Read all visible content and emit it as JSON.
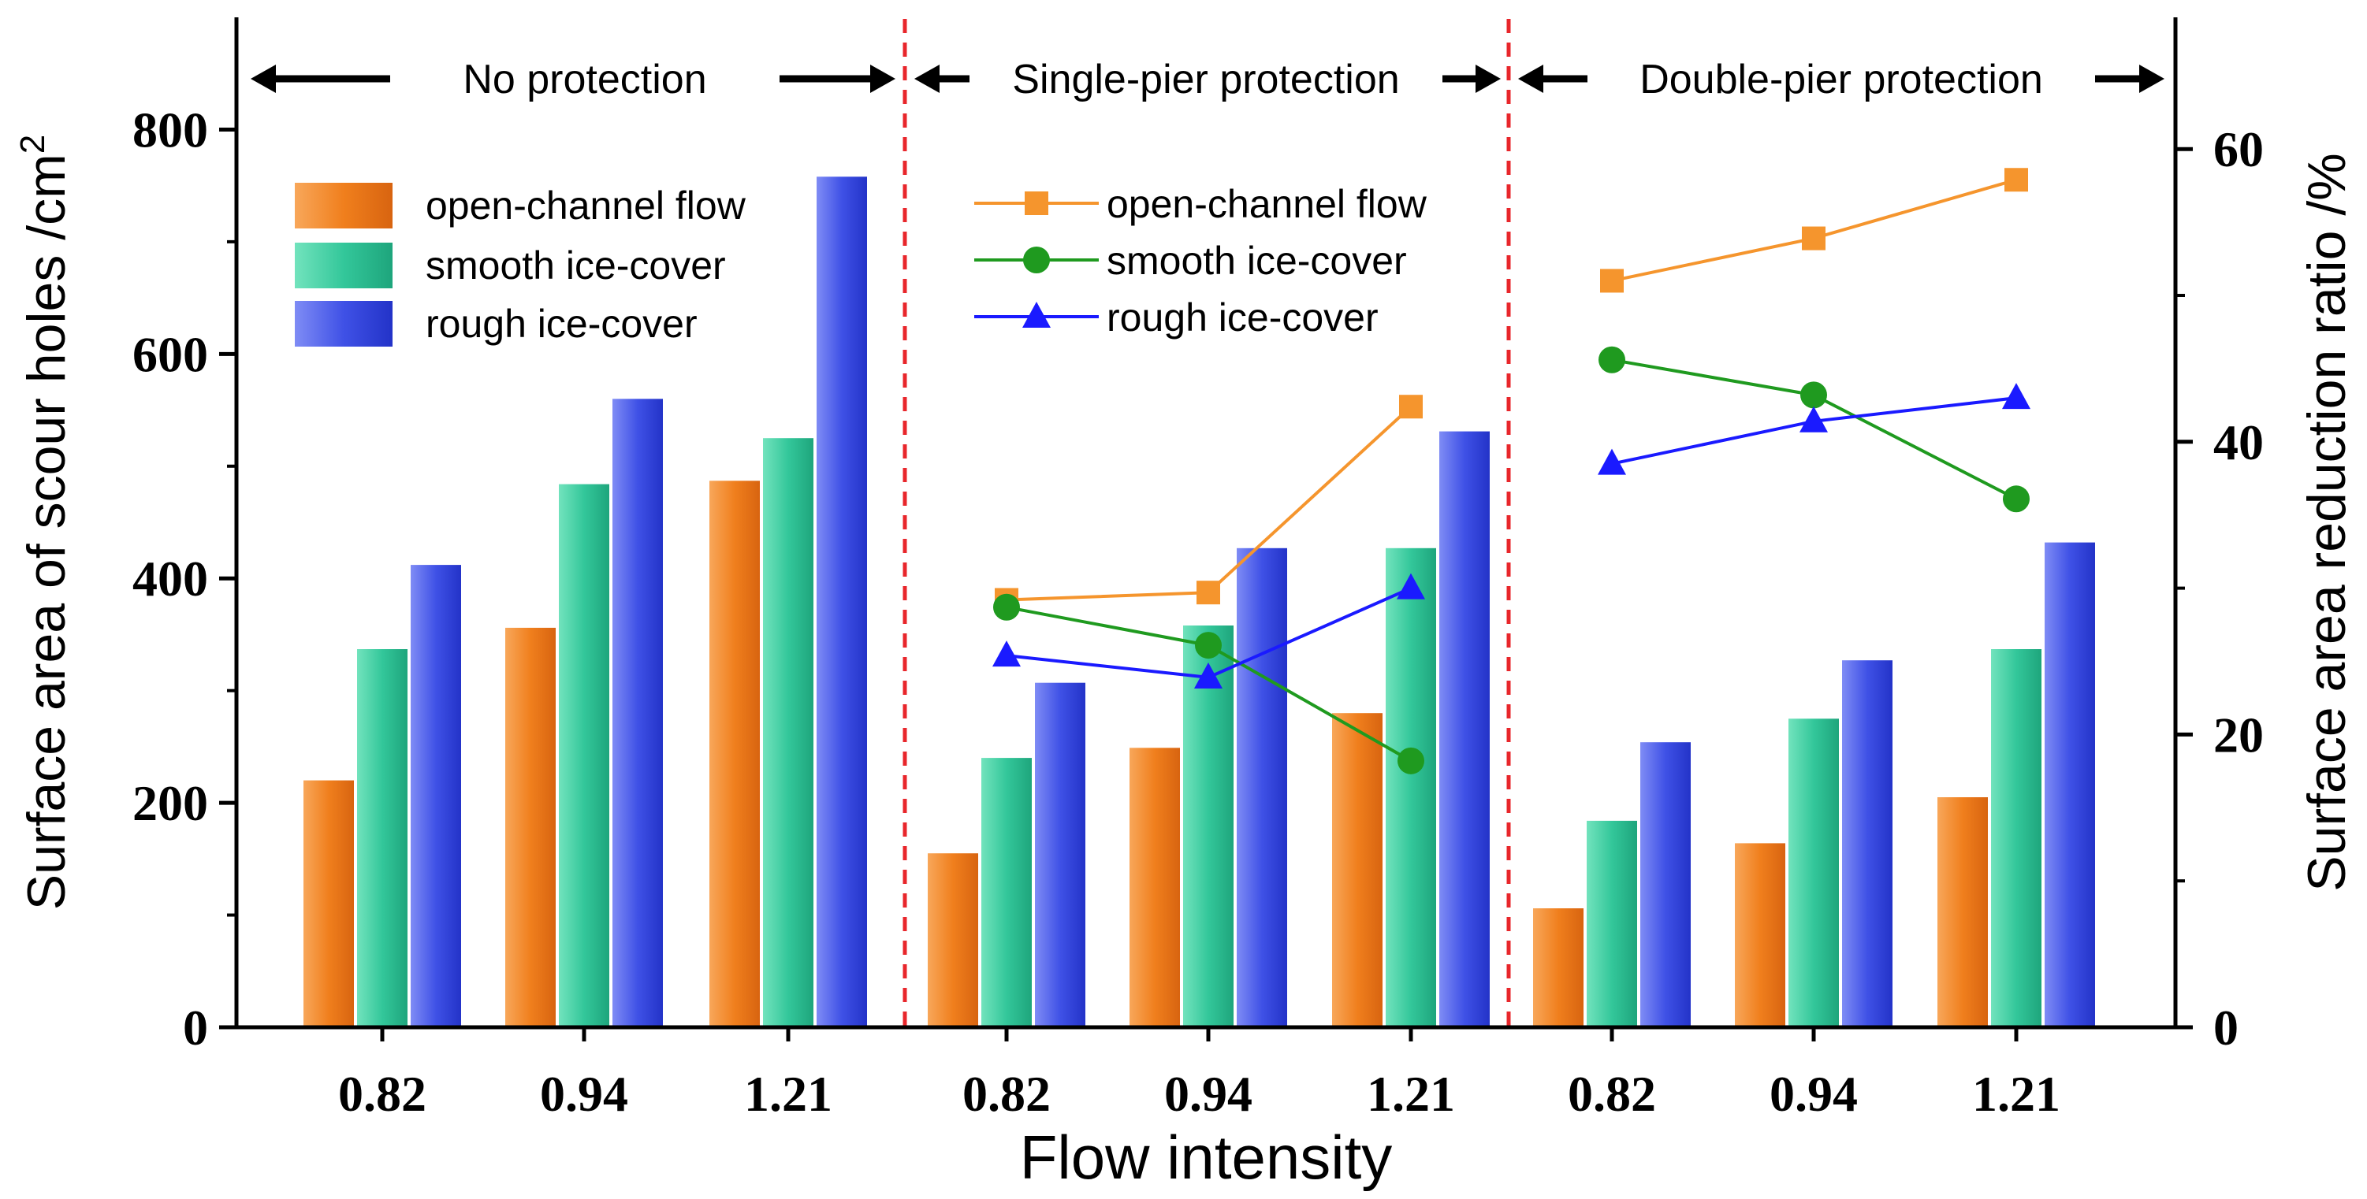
{
  "chart_data": {
    "type": "bar",
    "xlabel": "Flow intensity",
    "ylabel_left": "Surface area of scour holes /cm",
    "ylabel_left_superscript": "2",
    "ylabel_right": "Surface area reduction ratio /%",
    "ylim_left": [
      0,
      900
    ],
    "yticks_left": [
      "0",
      "200",
      "400",
      "600",
      "800"
    ],
    "ylim_right": [
      0,
      69
    ],
    "yticks_right": [
      "0",
      "20",
      "40",
      "60"
    ],
    "sections": [
      {
        "label": "No protection",
        "categories": [
          "0.82",
          "0.94",
          "1.21"
        ]
      },
      {
        "label": "Single-pier protection",
        "categories": [
          "0.82",
          "0.94",
          "1.21"
        ]
      },
      {
        "label": "Double-pier protection",
        "categories": [
          "0.82",
          "0.94",
          "1.21"
        ]
      }
    ],
    "bar_series": [
      {
        "name": "open-channel flow",
        "color": "#f07f1d",
        "values": [
          220,
          356,
          487,
          155,
          249,
          280,
          106,
          164,
          205
        ]
      },
      {
        "name": "smooth ice-cover",
        "color": "#33c79a",
        "values": [
          337,
          484,
          525,
          240,
          358,
          427,
          184,
          275,
          337
        ]
      },
      {
        "name": "rough ice-cover",
        "color": "#3f51e6",
        "values": [
          412,
          560,
          758,
          307,
          427,
          531,
          254,
          327,
          432
        ]
      }
    ],
    "line_series": [
      {
        "name": "open-channel flow",
        "color": "#f5952d",
        "marker": "square",
        "segments": [
          {
            "section": 1,
            "values": [
              29.2,
              29.7,
              42.4
            ]
          },
          {
            "section": 2,
            "values": [
              51.0,
              53.9,
              57.9
            ]
          }
        ]
      },
      {
        "name": "smooth ice-cover",
        "color": "#1f9a1f",
        "marker": "circle",
        "segments": [
          {
            "section": 1,
            "values": [
              28.7,
              26.1,
              18.2
            ]
          },
          {
            "section": 2,
            "values": [
              45.6,
              43.2,
              36.1
            ]
          }
        ]
      },
      {
        "name": "rough ice-cover",
        "color": "#1a1aff",
        "marker": "triangle",
        "segments": [
          {
            "section": 1,
            "values": [
              25.4,
              23.9,
              30.0
            ]
          },
          {
            "section": 2,
            "values": [
              38.5,
              41.4,
              43.0
            ]
          }
        ]
      }
    ],
    "bar_legend_title": "",
    "line_legend_title": ""
  }
}
